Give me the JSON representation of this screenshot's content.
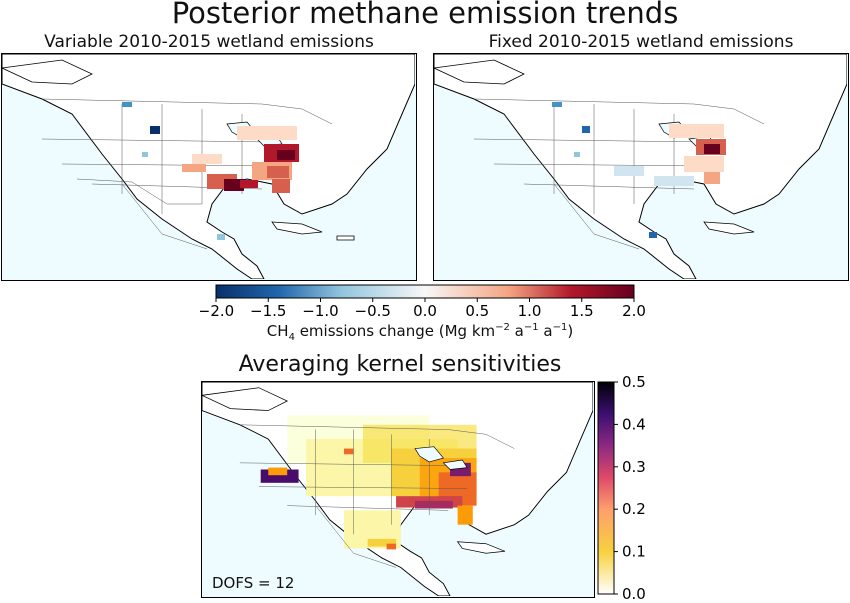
{
  "title": "Posterior methane emission trends",
  "panels": {
    "variable": {
      "title": "Variable 2010-2015 wetland emissions"
    },
    "fixed": {
      "title": "Fixed 2010-2015 wetland emissions"
    },
    "kernel": {
      "title": "Averaging kernel sensitivities",
      "annotation": "DOFS = 12"
    }
  },
  "trend_colorbar": {
    "ticks": [
      "−2.0",
      "−1.5",
      "−1.0",
      "−0.5",
      "0.0",
      "0.5",
      "1.0",
      "1.5",
      "2.0"
    ],
    "range": [
      -2.0,
      2.0
    ],
    "label_main": "CH",
    "label_sub": "4",
    "label_rest": " emissions change (Mg km",
    "label_sup1": "−2",
    "label_mid": " a",
    "label_sup2": "−1",
    "label_mid2": " a",
    "label_sup3": "−1",
    "label_end": ")",
    "colors": [
      "#08306b",
      "#2166ac",
      "#4393c3",
      "#92c5de",
      "#d1e5f0",
      "#f7f7f7",
      "#fddbc7",
      "#f4a582",
      "#d6604d",
      "#b2182b",
      "#67001f"
    ]
  },
  "kernel_colorbar": {
    "ticks": [
      "0.5",
      "0.4",
      "0.3",
      "0.2",
      "0.1",
      "0.0"
    ],
    "range": [
      0.0,
      0.5
    ],
    "colors": [
      "#000000",
      "#1b0c41",
      "#4a0c6b",
      "#781c6d",
      "#a52c60",
      "#cf4446",
      "#ed6925",
      "#fb9b06",
      "#f7d13d",
      "#fcffa4",
      "#ffffff"
    ]
  }
}
